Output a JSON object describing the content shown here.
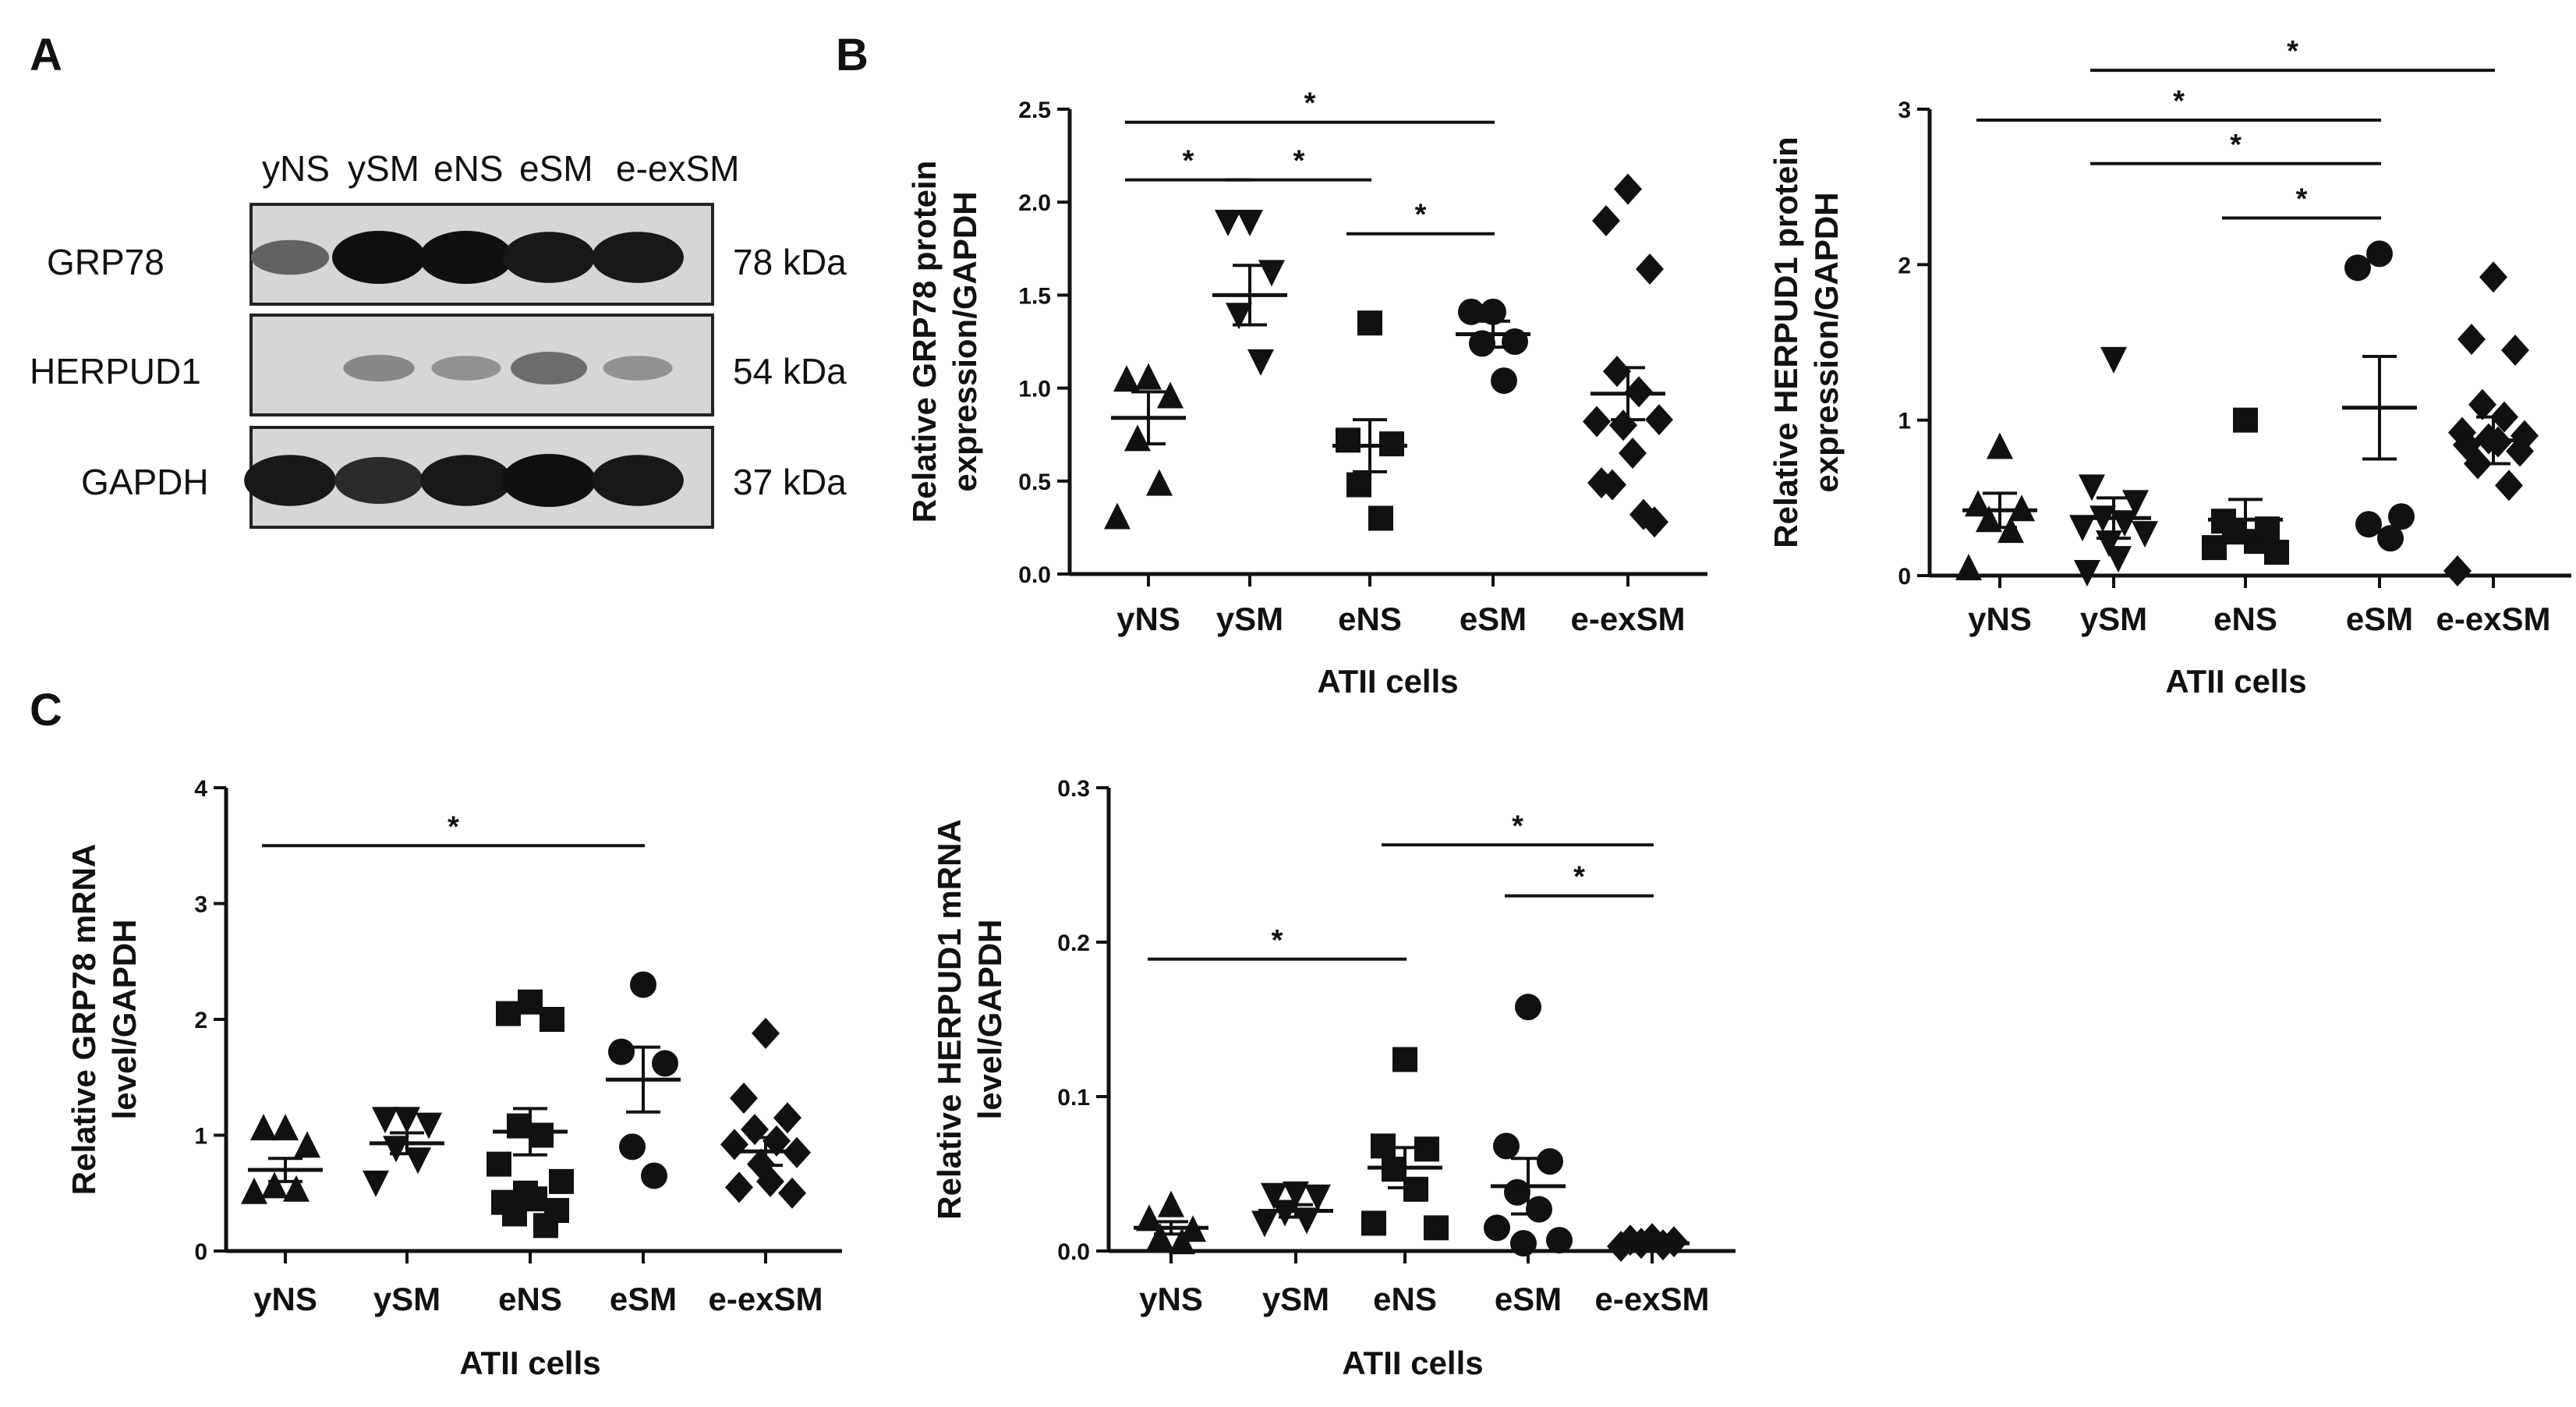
{
  "figure": {
    "panel_letters": [
      "A",
      "B",
      "C"
    ]
  },
  "blot": {
    "lanes": [
      "yNS",
      "ySM",
      "eNS",
      "eSM",
      "e-exSM"
    ],
    "rows": [
      {
        "protein": "GRP78",
        "kda": "78 kDa",
        "intensity": [
          0.55,
          1.0,
          1.0,
          0.95,
          0.95
        ]
      },
      {
        "protein": "HERPUD1",
        "kda": "54 kDa",
        "intensity": [
          0.0,
          0.35,
          0.3,
          0.5,
          0.3
        ]
      },
      {
        "protein": "GAPDH",
        "kda": "37 kDa",
        "intensity": [
          0.95,
          0.85,
          0.95,
          1.0,
          0.95
        ]
      }
    ]
  },
  "chart_data": [
    {
      "id": "B1",
      "type": "scatter",
      "title": "",
      "ylabel": "Relative GRP78 protein expression/GAPDH",
      "ylabel_lines": [
        "Relative GRP78 protein",
        "expression/GAPDH"
      ],
      "xlabel": "ATII cells",
      "categories": [
        "yNS",
        "ySM",
        "eNS",
        "eSM",
        "e-exSM"
      ],
      "markers": [
        "triangle-up",
        "triangle-down",
        "square",
        "circle",
        "diamond"
      ],
      "ylim": [
        0,
        2.5
      ],
      "yticks": [
        0.0,
        0.5,
        1.0,
        1.5,
        2.0,
        2.5
      ],
      "ytick_labels": [
        "0.0",
        "0.5",
        "1.0",
        "1.5",
        "2.0",
        "2.5"
      ],
      "points": [
        [
          1.05,
          1.04,
          0.95,
          0.72,
          0.48,
          0.3
        ],
        [
          1.9,
          1.9,
          1.63,
          1.4,
          1.15
        ],
        [
          1.35,
          0.72,
          0.7,
          0.48,
          0.3
        ],
        [
          1.41,
          1.41,
          1.25,
          1.24,
          1.04
        ],
        [
          2.07,
          1.9,
          1.64,
          1.09,
          0.98,
          0.82,
          0.83,
          0.8,
          0.65,
          0.49,
          0.28,
          0.48,
          0.32
        ]
      ],
      "means": [
        0.84,
        1.5,
        0.69,
        1.29,
        0.97
      ],
      "sems": [
        0.14,
        0.16,
        0.14,
        0.07,
        0.14
      ],
      "significance": [
        {
          "from": 0,
          "to": 3,
          "y": 2.43,
          "label": "*"
        },
        {
          "from": 0,
          "to": 1,
          "y": 2.12,
          "label": "*"
        },
        {
          "from": 1,
          "to": 2,
          "y": 2.12,
          "label": "*"
        },
        {
          "from": 2,
          "to": 3,
          "y": 1.83,
          "label": "*"
        }
      ]
    },
    {
      "id": "B2",
      "type": "scatter",
      "title": "",
      "ylabel": "Relative HERPUD1 protein expression/GAPDH",
      "ylabel_lines": [
        "Relative HERPUD1 protein",
        "expression/GAPDH"
      ],
      "xlabel": "ATII cells",
      "categories": [
        "yNS",
        "ySM",
        "eNS",
        "eSM",
        "e-exSM"
      ],
      "markers": [
        "triangle-up",
        "triangle-down",
        "square",
        "circle",
        "diamond"
      ],
      "ylim": [
        0,
        3
      ],
      "yticks": [
        0,
        1,
        2,
        3
      ],
      "ytick_labels": [
        "0",
        "1",
        "2",
        "3"
      ],
      "points": [
        [
          0.82,
          0.45,
          0.42,
          0.35,
          0.28,
          0.04
        ],
        [
          1.4,
          0.58,
          0.48,
          0.38,
          0.35,
          0.32,
          0.28,
          0.22,
          0.12,
          0.03
        ],
        [
          1.0,
          0.35,
          0.3,
          0.28,
          0.22,
          0.18,
          0.15
        ],
        [
          2.07,
          1.98,
          0.38,
          0.33,
          0.24
        ],
        [
          1.92,
          1.52,
          1.45,
          1.1,
          1.02,
          0.92,
          0.9,
          0.88,
          0.86,
          0.84,
          0.8,
          0.72,
          0.58,
          0.03
        ]
      ],
      "means": [
        0.42,
        0.37,
        0.36,
        1.08,
        0.87
      ],
      "sems": [
        0.11,
        0.13,
        0.13,
        0.33,
        0.15
      ],
      "significance": [
        {
          "from": 1,
          "to": 4,
          "y": 3.25,
          "label": "*"
        },
        {
          "from": 0,
          "to": 3,
          "y": 2.93,
          "label": "*"
        },
        {
          "from": 1,
          "to": 3,
          "y": 2.65,
          "label": "*"
        },
        {
          "from": 2,
          "to": 3,
          "y": 2.3,
          "label": "*"
        }
      ]
    },
    {
      "id": "C1",
      "type": "scatter",
      "title": "",
      "ylabel": "Relative GRP78 mRNA level/GAPDH",
      "ylabel_lines": [
        "Relative GRP78 mRNA",
        "level/GAPDH"
      ],
      "xlabel": "ATII cells",
      "categories": [
        "yNS",
        "ySM",
        "eNS",
        "eSM",
        "e-exSM"
      ],
      "markers": [
        "triangle-up",
        "triangle-down",
        "square",
        "circle",
        "diamond"
      ],
      "ylim": [
        0,
        4
      ],
      "yticks": [
        0,
        1,
        2,
        3,
        4
      ],
      "ytick_labels": [
        "0",
        "1",
        "2",
        "3",
        "4"
      ],
      "points": [
        [
          1.05,
          1.05,
          0.9,
          0.55,
          0.52,
          0.5
        ],
        [
          1.15,
          1.15,
          1.1,
          0.9,
          0.8,
          0.6
        ],
        [
          2.15,
          2.05,
          2.0,
          1.08,
          1.0,
          0.75,
          0.6,
          0.5,
          0.45,
          0.42,
          0.35,
          0.32,
          0.22
        ],
        [
          2.3,
          1.72,
          1.62,
          0.9,
          0.65
        ],
        [
          1.88,
          1.32,
          1.15,
          1.05,
          0.95,
          0.92,
          0.85,
          0.75,
          0.6,
          0.55,
          0.5
        ]
      ],
      "means": [
        0.7,
        0.93,
        1.03,
        1.48,
        0.86
      ],
      "sems": [
        0.1,
        0.09,
        0.2,
        0.28,
        0.12
      ],
      "significance": [
        {
          "from": 0,
          "to": 3,
          "y": 3.5,
          "label": "*"
        }
      ]
    },
    {
      "id": "C2",
      "type": "scatter",
      "title": "",
      "ylabel": "Relative HERPUD1 mRNA level/GAPDH",
      "ylabel_lines": [
        "Relative HERPUD1 mRNA",
        "level/GAPDH"
      ],
      "xlabel": "ATII cells",
      "categories": [
        "yNS",
        "ySM",
        "eNS",
        "eSM",
        "e-exSM"
      ],
      "markers": [
        "triangle-up",
        "triangle-down",
        "square",
        "circle",
        "diamond"
      ],
      "ylim": [
        0,
        0.3
      ],
      "yticks": [
        0.0,
        0.1,
        0.2,
        0.3
      ],
      "ytick_labels": [
        "0.0",
        "0.1",
        "0.2",
        "0.3"
      ],
      "points": [
        [
          0.029,
          0.02,
          0.013,
          0.008,
          0.005
        ],
        [
          0.038,
          0.037,
          0.036,
          0.026,
          0.021,
          0.019
        ],
        [
          0.124,
          0.068,
          0.066,
          0.053,
          0.04,
          0.018,
          0.015
        ],
        [
          0.158,
          0.068,
          0.058,
          0.038,
          0.027,
          0.015,
          0.007,
          0.005
        ],
        [
          0.008,
          0.007,
          0.006,
          0.005,
          0.004,
          0.003
        ]
      ],
      "means": [
        0.015,
        0.026,
        0.054,
        0.042,
        0.005
      ],
      "sems": [
        0.004,
        0.004,
        0.013,
        0.018,
        0.001
      ],
      "significance": [
        {
          "from": 2,
          "to": 4,
          "y": 0.263,
          "label": "*"
        },
        {
          "from": 3,
          "to": 4,
          "y": 0.23,
          "label": "*"
        },
        {
          "from": 0,
          "to": 2,
          "y": 0.189,
          "label": "*"
        }
      ]
    }
  ]
}
